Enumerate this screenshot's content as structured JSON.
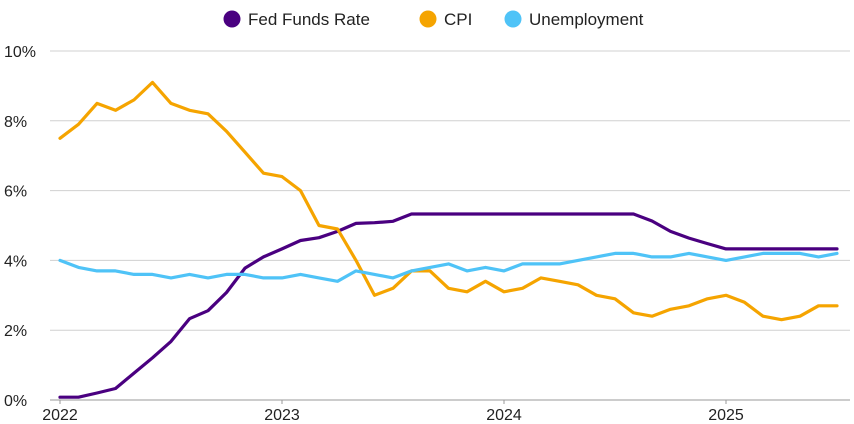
{
  "chart_data": {
    "type": "line",
    "title": "",
    "xlabel": "",
    "ylabel": "",
    "x_ticks": [
      "2022",
      "2023",
      "2024",
      "2025"
    ],
    "y_ticks": [
      "0%",
      "2%",
      "4%",
      "6%",
      "8%",
      "10%"
    ],
    "ylim": [
      0,
      10
    ],
    "grid": "horizontal",
    "legend_position": "top-center",
    "x": [
      "2022-01",
      "2022-02",
      "2022-03",
      "2022-04",
      "2022-05",
      "2022-06",
      "2022-07",
      "2022-08",
      "2022-09",
      "2022-10",
      "2022-11",
      "2022-12",
      "2023-01",
      "2023-02",
      "2023-03",
      "2023-04",
      "2023-05",
      "2023-06",
      "2023-07",
      "2023-08",
      "2023-09",
      "2023-10",
      "2023-11",
      "2023-12",
      "2024-01",
      "2024-02",
      "2024-03",
      "2024-04",
      "2024-05",
      "2024-06",
      "2024-07",
      "2024-08",
      "2024-09",
      "2024-10",
      "2024-11",
      "2024-12",
      "2025-01",
      "2025-02",
      "2025-03",
      "2025-04",
      "2025-05",
      "2025-06",
      "2025-07"
    ],
    "series": [
      {
        "name": "Fed Funds Rate",
        "color": "#4a0080",
        "values": [
          0.08,
          0.08,
          0.2,
          0.33,
          0.77,
          1.21,
          1.68,
          2.33,
          2.56,
          3.08,
          3.78,
          4.1,
          4.33,
          4.57,
          4.65,
          4.83,
          5.06,
          5.08,
          5.12,
          5.33,
          5.33,
          5.33,
          5.33,
          5.33,
          5.33,
          5.33,
          5.33,
          5.33,
          5.33,
          5.33,
          5.33,
          5.33,
          5.13,
          4.83,
          4.64,
          4.48,
          4.33,
          4.33,
          4.33,
          4.33,
          4.33,
          4.33,
          4.33
        ]
      },
      {
        "name": "CPI",
        "color": "#f5a400",
        "values": [
          7.5,
          7.9,
          8.5,
          8.3,
          8.6,
          9.1,
          8.5,
          8.3,
          8.2,
          7.7,
          7.1,
          6.5,
          6.4,
          6.0,
          5.0,
          4.9,
          4.0,
          3.0,
          3.2,
          3.7,
          3.7,
          3.2,
          3.1,
          3.4,
          3.1,
          3.2,
          3.5,
          3.4,
          3.3,
          3.0,
          2.9,
          2.5,
          2.4,
          2.6,
          2.7,
          2.9,
          3.0,
          2.8,
          2.4,
          2.3,
          2.4,
          2.7,
          2.7
        ]
      },
      {
        "name": "Unemployment",
        "color": "#4fc3f7",
        "values": [
          4.0,
          3.8,
          3.7,
          3.7,
          3.6,
          3.6,
          3.5,
          3.6,
          3.5,
          3.6,
          3.6,
          3.5,
          3.5,
          3.6,
          3.5,
          3.4,
          3.7,
          3.6,
          3.5,
          3.7,
          3.8,
          3.9,
          3.7,
          3.8,
          3.7,
          3.9,
          3.9,
          3.9,
          4.0,
          4.1,
          4.2,
          4.2,
          4.1,
          4.1,
          4.2,
          4.1,
          4.0,
          4.1,
          4.2,
          4.2,
          4.2,
          4.1,
          4.2
        ]
      }
    ]
  }
}
